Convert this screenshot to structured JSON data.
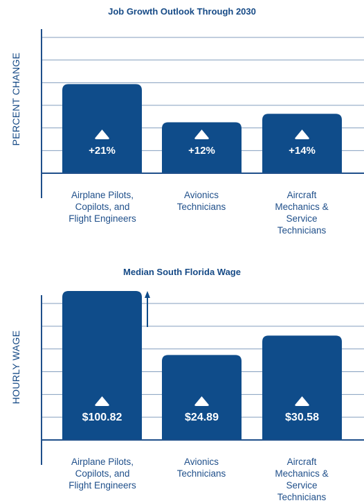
{
  "colors": {
    "bar": "#0f4c8a",
    "text": "#164a86",
    "grid": "#1f4f8a"
  },
  "chart_data": [
    {
      "type": "bar",
      "title": "Job Growth Outlook Through 2030",
      "ylabel": "PERCENT CHANGE",
      "xlabel": "",
      "categories": [
        "Airplane Pilots,\nCopilots, and\nFlight Engineers",
        "Avionics\nTechnicians",
        "Aircraft\nMechanics &\nService\nTechnicians"
      ],
      "values": [
        21,
        12,
        14
      ],
      "value_labels": [
        "+21%",
        "+12%",
        "+14%"
      ],
      "ylim": [
        0,
        32
      ],
      "grid": true,
      "icon": "triangle-up-icon"
    },
    {
      "type": "bar",
      "title": "Median South Florida Wage",
      "ylabel": "HOURLY WAGE",
      "xlabel": "",
      "categories": [
        "Airplane Pilots,\nCopilots, and\nFlight Engineers",
        "Avionics\nTechnicians",
        "Aircraft\nMechanics &\nService\nTechnicians"
      ],
      "values": [
        100.82,
        24.89,
        30.58
      ],
      "value_labels": [
        "$100.82",
        "$24.89",
        "$30.58"
      ],
      "ylim": [
        0,
        40
      ],
      "grid": true,
      "truncated_bar_index": 0,
      "icon": "triangle-up-icon"
    }
  ]
}
